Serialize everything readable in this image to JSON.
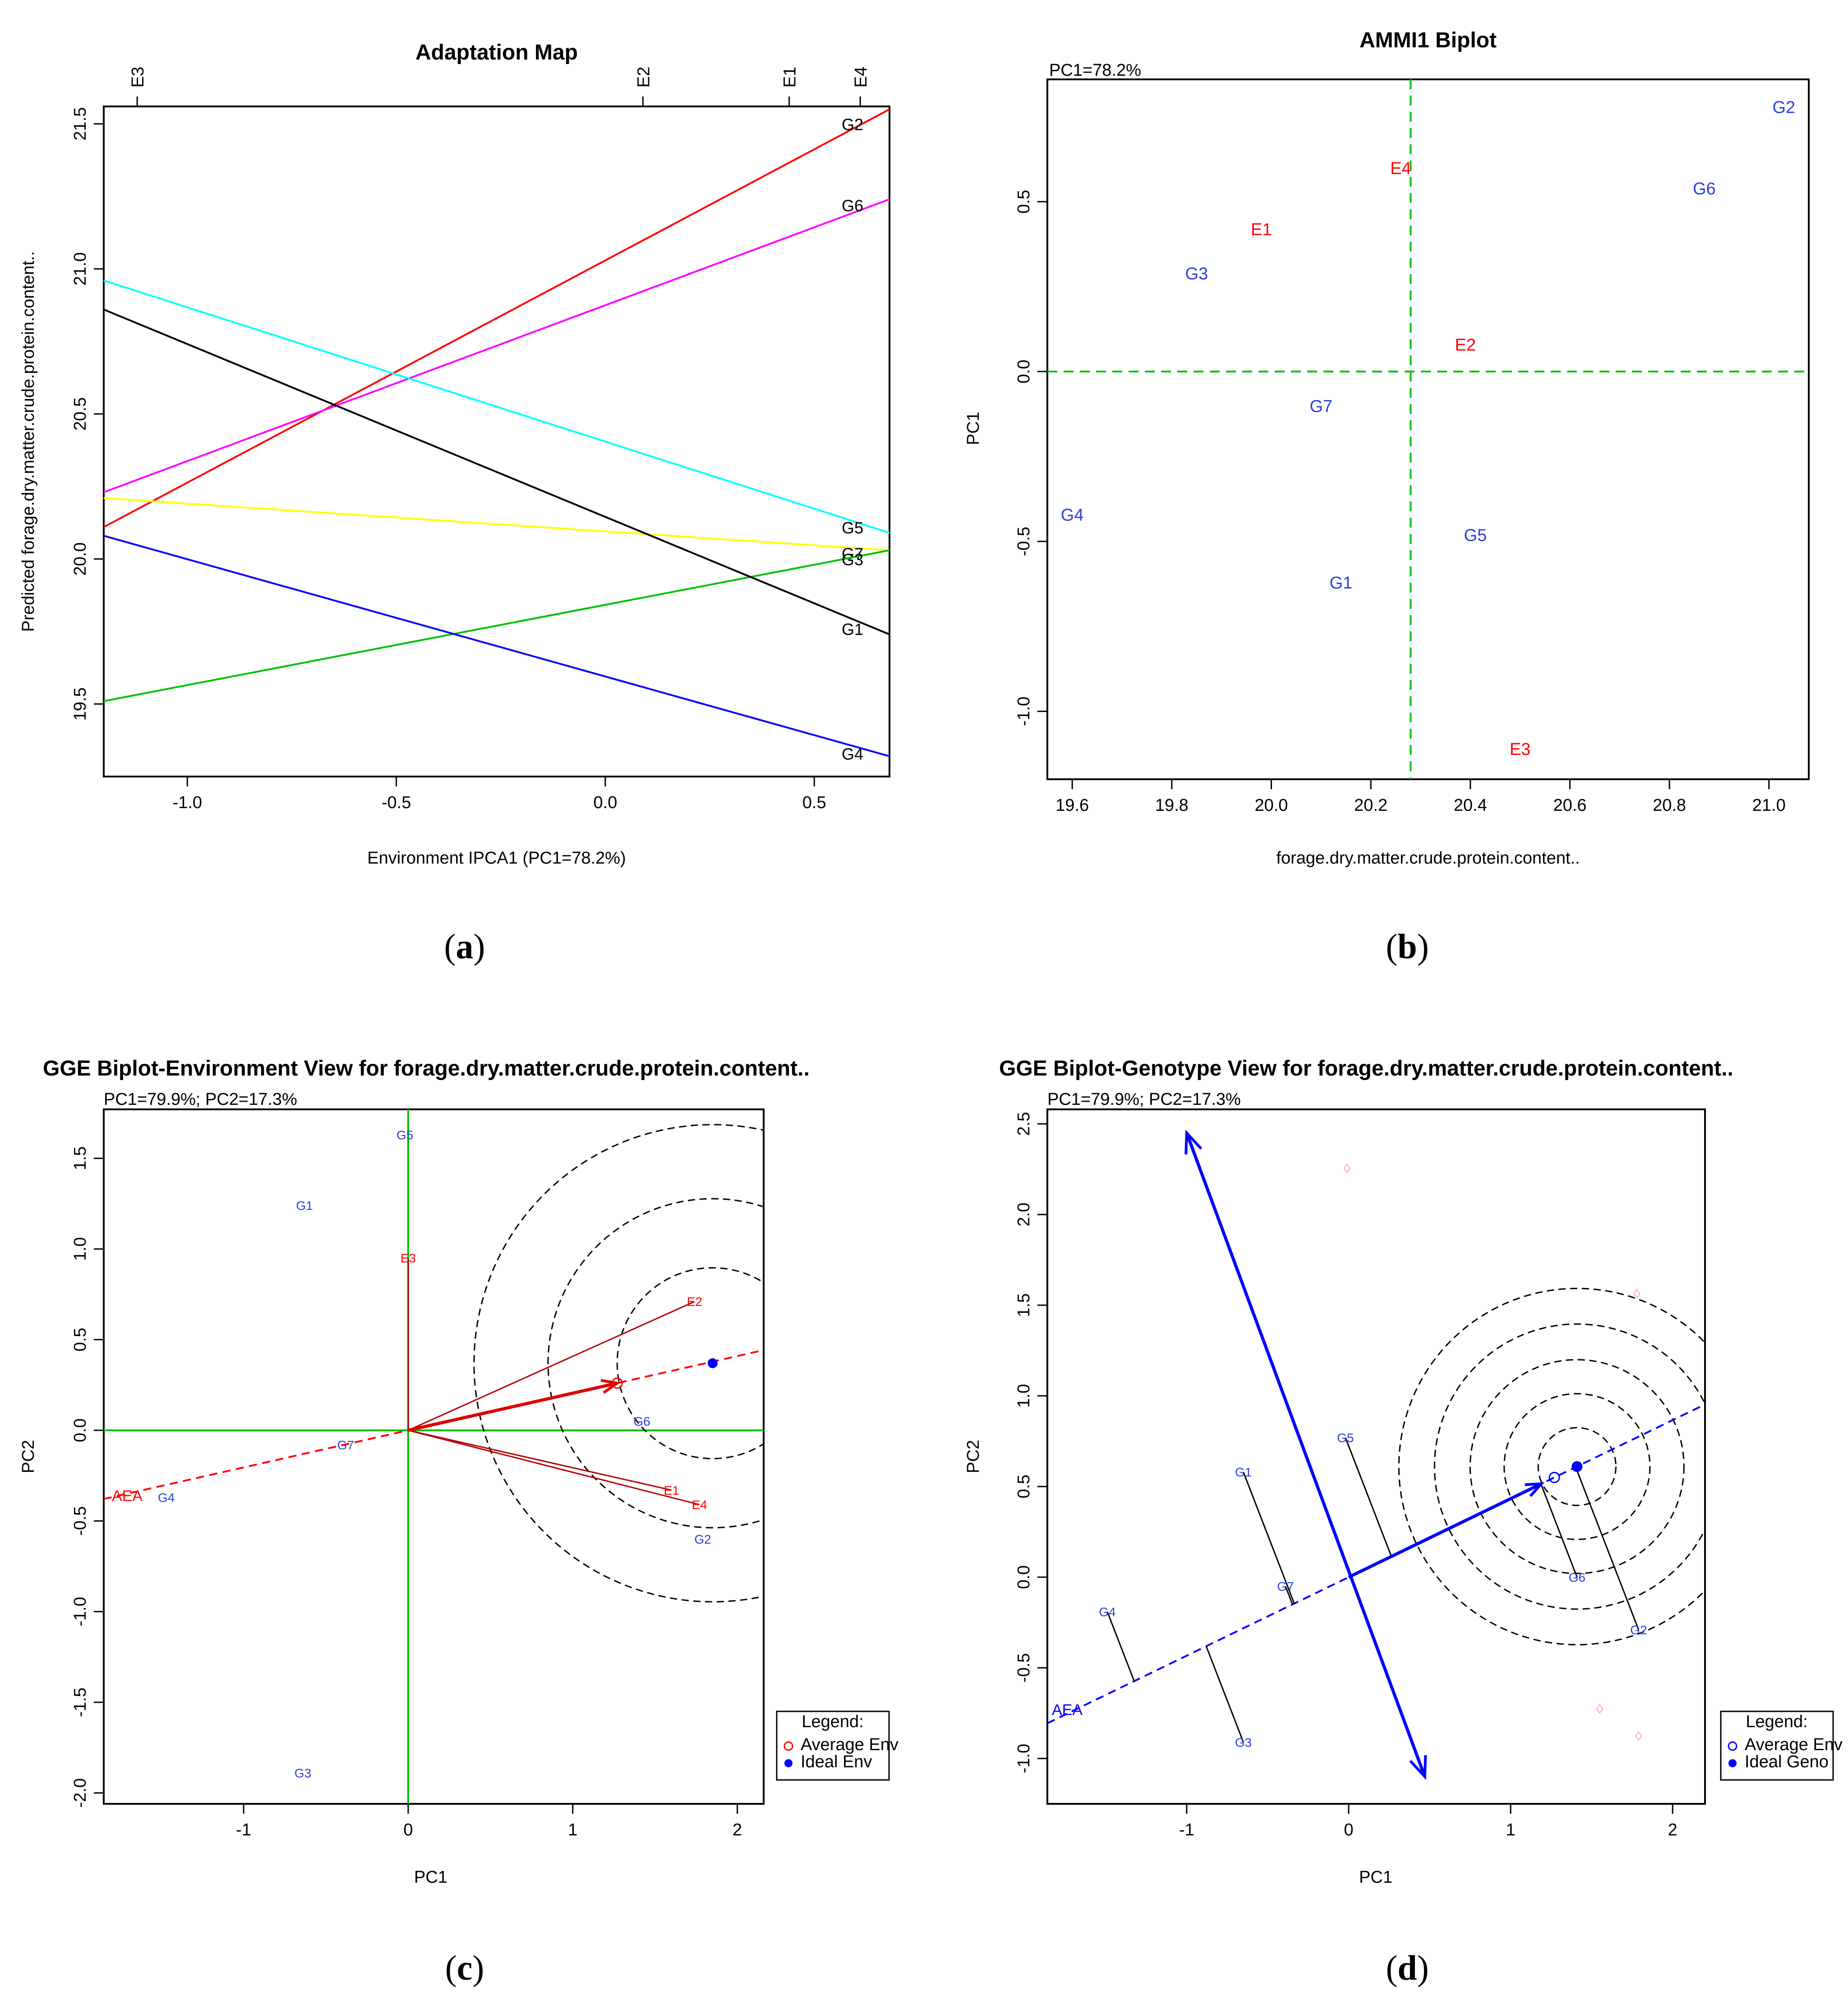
{
  "figure": {
    "captions": [
      "a",
      "b",
      "c",
      "d"
    ]
  },
  "colors": {
    "red": "#ff0000",
    "blue": "#0000ff",
    "pointBlue": "#2a3fd9",
    "green": "#00c000",
    "magenta": "#ff00ff",
    "cyan": "#00ffff",
    "yellow": "#ffff00",
    "black": "#000000",
    "darkred": "#b40000",
    "arrowRed": "#dd0000"
  },
  "chart_data": [
    {
      "panel": "a",
      "type": "line",
      "title": "Adaptation Map",
      "xlabel": "Environment IPCA1 (PC1=78.2%)",
      "ylabel": "Predicted forage.dry.matter.crude.protein.content..",
      "xlim": [
        -1.2,
        0.68
      ],
      "ylim": [
        19.25,
        21.56
      ],
      "xticks": [
        -1.0,
        -0.5,
        0.0,
        0.5
      ],
      "xtick_labels": [
        "-1.0",
        "-0.5",
        "0.0",
        "0.5"
      ],
      "yticks": [
        19.5,
        20.0,
        20.5,
        21.0,
        21.5
      ],
      "ytick_labels": [
        "19.5",
        "20.0",
        "20.5",
        "21.0",
        "21.5"
      ],
      "top_axis": [
        {
          "label": "E3",
          "x": -1.12
        },
        {
          "label": "E2",
          "x": 0.09
        },
        {
          "label": "E1",
          "x": 0.44
        },
        {
          "label": "E4",
          "x": 0.61
        }
      ],
      "series": [
        {
          "name": "G2",
          "color": "red",
          "x": [
            -1.2,
            0.68
          ],
          "y": [
            20.11,
            21.55
          ],
          "label_y": 21.5
        },
        {
          "name": "G6",
          "color": "magenta",
          "x": [
            -1.2,
            0.68
          ],
          "y": [
            20.23,
            21.24
          ],
          "label_y": 21.22
        },
        {
          "name": "G5",
          "color": "cyan",
          "x": [
            -1.2,
            0.68
          ],
          "y": [
            20.96,
            20.09
          ],
          "label_y": 20.11
        },
        {
          "name": "G7",
          "color": "yellow",
          "x": [
            -1.2,
            0.68
          ],
          "y": [
            20.21,
            20.03
          ],
          "label_y": 20.02
        },
        {
          "name": "G3",
          "color": "green",
          "x": [
            -1.2,
            0.68
          ],
          "y": [
            19.51,
            20.03
          ],
          "label_y": 20.0
        },
        {
          "name": "G1",
          "color": "black",
          "x": [
            -1.2,
            0.68
          ],
          "y": [
            20.86,
            19.74
          ],
          "label_y": 19.76
        },
        {
          "name": "G4",
          "color": "blue",
          "x": [
            -1.2,
            0.68
          ],
          "y": [
            20.08,
            19.32
          ],
          "label_y": 19.33
        }
      ]
    },
    {
      "panel": "b",
      "type": "scatter",
      "title": "AMMI1 Biplot",
      "subtitle": "PC1=78.2%",
      "xlabel": "forage.dry.matter.crude.protein.content..",
      "ylabel": "PC1",
      "xlim": [
        19.55,
        21.08
      ],
      "ylim": [
        -1.2,
        0.86
      ],
      "xticks": [
        19.6,
        19.8,
        20.0,
        20.2,
        20.4,
        20.6,
        20.8,
        21.0
      ],
      "xtick_labels": [
        "19.6",
        "19.8",
        "20.0",
        "20.2",
        "20.4",
        "20.6",
        "20.8",
        "21.0"
      ],
      "yticks": [
        -1.0,
        -0.5,
        0.0,
        0.5
      ],
      "ytick_labels": [
        "-1.0",
        "-0.5",
        "0.0",
        "0.5"
      ],
      "ref_lines": {
        "x": 20.28,
        "y": 0.0
      },
      "points": [
        {
          "label": "G2",
          "x": 21.03,
          "y": 0.78,
          "group": "genotype"
        },
        {
          "label": "G6",
          "x": 20.87,
          "y": 0.54,
          "group": "genotype"
        },
        {
          "label": "G3",
          "x": 19.85,
          "y": 0.29,
          "group": "genotype"
        },
        {
          "label": "G7",
          "x": 20.1,
          "y": -0.1,
          "group": "genotype"
        },
        {
          "label": "G4",
          "x": 19.6,
          "y": -0.42,
          "group": "genotype"
        },
        {
          "label": "G5",
          "x": 20.41,
          "y": -0.48,
          "group": "genotype"
        },
        {
          "label": "G1",
          "x": 20.14,
          "y": -0.62,
          "group": "genotype"
        },
        {
          "label": "E4",
          "x": 20.26,
          "y": 0.6,
          "group": "environment"
        },
        {
          "label": "E1",
          "x": 19.98,
          "y": 0.42,
          "group": "environment"
        },
        {
          "label": "E2",
          "x": 20.39,
          "y": 0.08,
          "group": "environment"
        },
        {
          "label": "E3",
          "x": 20.5,
          "y": -1.11,
          "group": "environment"
        }
      ]
    },
    {
      "panel": "c",
      "type": "scatter",
      "title": "GGE Biplot-Environment View for forage.dry.matter.crude.protein.content..",
      "subtitle": "PC1=79.9%; PC2=17.3%",
      "xlabel": "PC1",
      "ylabel": "PC2",
      "xlim": [
        -1.85,
        2.16
      ],
      "ylim": [
        -2.06,
        1.77
      ],
      "xticks": [
        -1,
        0,
        1,
        2
      ],
      "xtick_labels": [
        "-1",
        "0",
        "1",
        "2"
      ],
      "yticks": [
        -2.0,
        -1.5,
        -1.0,
        -0.5,
        0.0,
        0.5,
        1.0,
        1.5
      ],
      "ytick_labels": [
        "-2.0",
        "-1.5",
        "-1.0",
        "-0.5",
        "0.0",
        "0.5",
        "1.0",
        "1.5"
      ],
      "genotypes": [
        {
          "label": "G5",
          "x": -0.02,
          "y": 1.63
        },
        {
          "label": "G1",
          "x": -0.63,
          "y": 1.24
        },
        {
          "label": "G7",
          "x": -0.38,
          "y": -0.08
        },
        {
          "label": "G4",
          "x": -1.47,
          "y": -0.37
        },
        {
          "label": "G6",
          "x": 1.42,
          "y": 0.05
        },
        {
          "label": "G2",
          "x": 1.79,
          "y": -0.6
        },
        {
          "label": "G3",
          "x": -0.64,
          "y": -1.89
        }
      ],
      "environments": [
        {
          "label": "E3",
          "x": 0.0,
          "y": 0.95
        },
        {
          "label": "E2",
          "x": 1.74,
          "y": 0.71
        },
        {
          "label": "E1",
          "x": 1.6,
          "y": -0.33
        },
        {
          "label": "E4",
          "x": 1.77,
          "y": -0.41
        }
      ],
      "aea_label": "AEA",
      "average_env": {
        "x": 1.27,
        "y": 0.26
      },
      "ideal_point": {
        "x": 1.85,
        "y": 0.37
      },
      "circle_radii": [
        0.58,
        1.0,
        1.45
      ],
      "legend": {
        "title": "Legend:",
        "items": [
          "Average Env",
          "Ideal Env"
        ]
      }
    },
    {
      "panel": "d",
      "type": "scatter",
      "title": "GGE Biplot-Genotype View for forage.dry.matter.crude.protein.content..",
      "subtitle": "PC1=79.9%; PC2=17.3%",
      "xlabel": "PC1",
      "ylabel": "PC2",
      "xlim": [
        -1.86,
        2.2
      ],
      "ylim": [
        -1.25,
        2.58
      ],
      "xticks": [
        -1,
        0,
        1,
        2
      ],
      "xtick_labels": [
        "-1",
        "0",
        "1",
        "2"
      ],
      "yticks": [
        -1.0,
        -0.5,
        0.0,
        0.5,
        1.0,
        1.5,
        2.0,
        2.5
      ],
      "ytick_labels": [
        "-1.0",
        "-0.5",
        "0.0",
        "0.5",
        "1.0",
        "1.5",
        "2.0",
        "2.5"
      ],
      "genotypes": [
        {
          "label": "G5",
          "x": -0.02,
          "y": 0.77
        },
        {
          "label": "G1",
          "x": -0.65,
          "y": 0.58
        },
        {
          "label": "G7",
          "x": -0.39,
          "y": -0.05
        },
        {
          "label": "G4",
          "x": -1.49,
          "y": -0.19
        },
        {
          "label": "G6",
          "x": 1.41,
          "y": 0.0
        },
        {
          "label": "G2",
          "x": 1.79,
          "y": -0.29
        },
        {
          "label": "G3",
          "x": -0.65,
          "y": -0.91
        }
      ],
      "environments": [
        {
          "x": -0.01,
          "y": 2.25
        },
        {
          "x": 1.78,
          "y": 1.56
        },
        {
          "x": 1.55,
          "y": -0.73
        },
        {
          "x": 1.79,
          "y": -0.88
        }
      ],
      "aea_label": "AEA",
      "average_env": {
        "x": 1.27,
        "y": 0.55
      },
      "ideal_point": {
        "x": 1.41,
        "y": 0.61
      },
      "circle_radii": [
        0.24,
        0.45,
        0.66,
        0.88,
        1.1
      ],
      "legend": {
        "title": "Legend:",
        "items": [
          "Average Env",
          "Ideal Geno"
        ]
      }
    }
  ]
}
